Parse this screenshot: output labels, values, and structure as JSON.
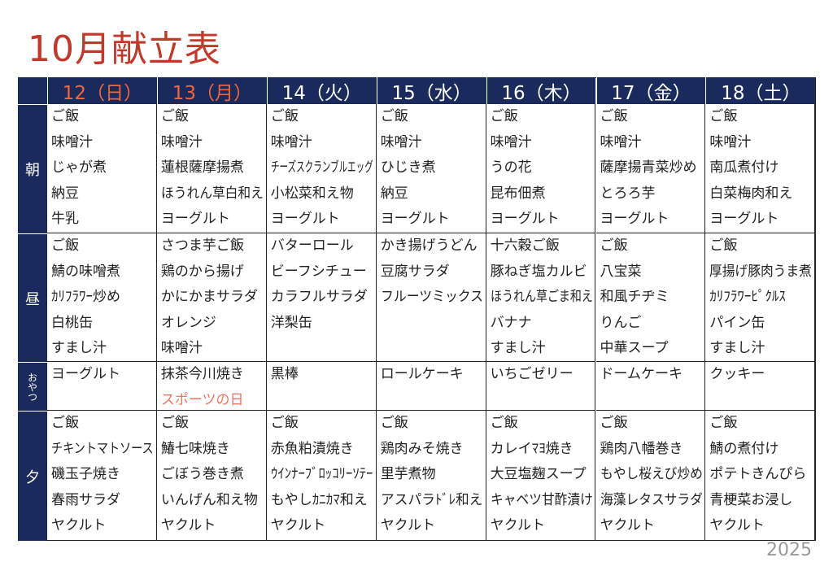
{
  "header": {
    "title": "10月献立表"
  },
  "columns": [
    "12（日）",
    "13（月）",
    "14（火）",
    "15（水）",
    "16（木）",
    "17（金）",
    "18（土）"
  ],
  "rows": [
    {
      "label": "朝",
      "cells": [
        [
          "ご飯",
          "味噌汁",
          "じゃが煮",
          "納豆",
          "牛乳"
        ],
        [
          "ご飯",
          "味噌汁",
          "蓮根薩摩揚煮",
          "ほうれん草白和え",
          "ヨーグルト"
        ],
        [
          "ご飯",
          "味噌汁",
          "チーズスクランブルエッグ",
          "小松菜和え物",
          "ヨーグルト"
        ],
        [
          "ご飯",
          "味噌汁",
          "ひじき煮",
          "納豆",
          "ヨーグルト"
        ],
        [
          "ご飯",
          "味噌汁",
          "うの花",
          "昆布佃煮",
          "ヨーグルト"
        ],
        [
          "ご飯",
          "味噌汁",
          "薩摩揚青菜炒め",
          "とろろ芋",
          "ヨーグルト"
        ],
        [
          "ご飯",
          "味噌汁",
          "南瓜煮付け",
          "白菜梅肉和え",
          "ヨーグルト"
        ]
      ]
    },
    {
      "label": "昼",
      "cells": [
        [
          "ご飯",
          "鯖の味噌煮",
          "ｶﾘﾌﾗﾜｰ炒め",
          "白桃缶",
          "すまし汁"
        ],
        [
          "さつま芋ご飯",
          "鶏のから揚げ",
          "かにかまサラダ",
          "オレンジ",
          "味噌汁"
        ],
        [
          "バターロール",
          "ビーフシチュー",
          "カラフルサラダ",
          "洋梨缶"
        ],
        [
          "かき揚げうどん",
          "豆腐サラダ",
          "フルーツミックス"
        ],
        [
          "十六穀ご飯",
          "豚ねぎ塩カルビ",
          "ほうれん草ごま和え",
          "バナナ",
          "すまし汁"
        ],
        [
          "ご飯",
          "八宝菜",
          "和風チヂミ",
          "りんご",
          "中華スープ"
        ],
        [
          "ご飯",
          "厚揚げ豚肉うま煮",
          "ｶﾘﾌﾗﾜｰﾋﾟｸﾙｽ",
          "パイン缶",
          "すまし汁"
        ]
      ]
    },
    {
      "label": "おやつ",
      "cells": [
        [
          "ヨーグルト"
        ],
        [
          "抹茶今川焼き",
          "スポーツの日"
        ],
        [
          "黒棒"
        ],
        [
          "ロールケーキ"
        ],
        [
          "いちごゼリー"
        ],
        [
          "ドームケーキ"
        ],
        [
          "クッキー"
        ]
      ]
    },
    {
      "label": "夕",
      "cells": [
        [
          "ご飯",
          "チキントマトソース",
          "磯玉子焼き",
          "春雨サラダ",
          "ヤクルト"
        ],
        [
          "ご飯",
          "鰆七味焼き",
          "ごぼう巻き煮",
          "いんげん和え物",
          "ヤクルト"
        ],
        [
          "ご飯",
          "赤魚粕漬焼き",
          "ｳｲﾝﾅｰﾌﾞﾛｯｺﾘｰｿﾃｰ",
          "もやしｶﾆｶﾏ和え",
          "ヤクルト"
        ],
        [
          "ご飯",
          "鶏肉みそ焼き",
          "里芋煮物",
          "アスパラﾄﾞﾚ和え",
          "ヤクルト"
        ],
        [
          "ご飯",
          "カレイﾏﾖ焼き",
          "大豆塩麹スープ",
          "キャベツ甘酢漬け",
          "ヤクルト"
        ],
        [
          "ご飯",
          "鶏肉八幡巻き",
          "もやし桜えび炒め",
          "海藻レタスサラダ",
          "ヤクルト"
        ],
        [
          "ご飯",
          "鯖の煮付け",
          "ポテトきんぴら",
          "青梗菜お浸し",
          "ヤクルト"
        ]
      ]
    }
  ],
  "footer": {
    "year": "2025"
  }
}
